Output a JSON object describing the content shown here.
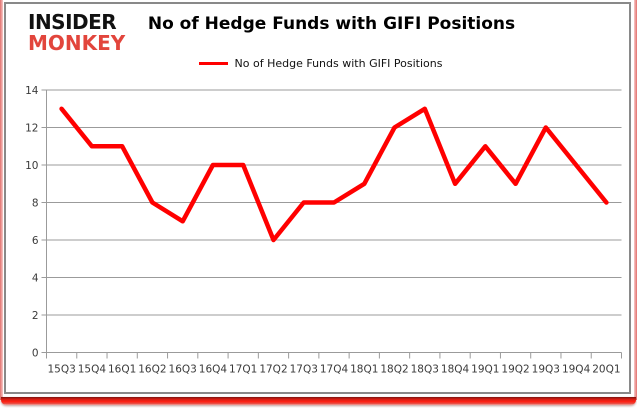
{
  "logo": {
    "line1": "INSIDER",
    "line2": "MONKEY"
  },
  "title": "No of Hedge Funds with GIFI Positions",
  "legend": {
    "label": "No of Hedge Funds with GIFI Positions"
  },
  "colors": {
    "series": "#FF0000",
    "logo_black": "#111111",
    "logo_red": "#E2453C",
    "grid": "#9B9B9B",
    "axis_text": "#3A3A3A",
    "panel_border": "#898989",
    "frame_red": "#EE2215"
  },
  "chart_data": {
    "type": "line",
    "title": "No of Hedge Funds with GIFI Positions",
    "categories": [
      "15Q3",
      "15Q4",
      "16Q1",
      "16Q2",
      "16Q3",
      "16Q4",
      "17Q1",
      "17Q2",
      "17Q3",
      "17Q4",
      "18Q1",
      "18Q2",
      "18Q3",
      "18Q4",
      "19Q1",
      "19Q2",
      "19Q3",
      "19Q4",
      "20Q1"
    ],
    "series": [
      {
        "name": "No of Hedge Funds with GIFI Positions",
        "values": [
          13,
          11,
          11,
          8,
          7,
          10,
          10,
          6,
          8,
          8,
          9,
          12,
          13,
          9,
          11,
          9,
          12,
          10,
          8
        ]
      }
    ],
    "xlabel": "",
    "ylabel": "",
    "ylim": [
      0,
      14
    ],
    "yticks": [
      0,
      2,
      4,
      6,
      8,
      10,
      12,
      14
    ],
    "grid": true,
    "legend_position": "top-center"
  }
}
